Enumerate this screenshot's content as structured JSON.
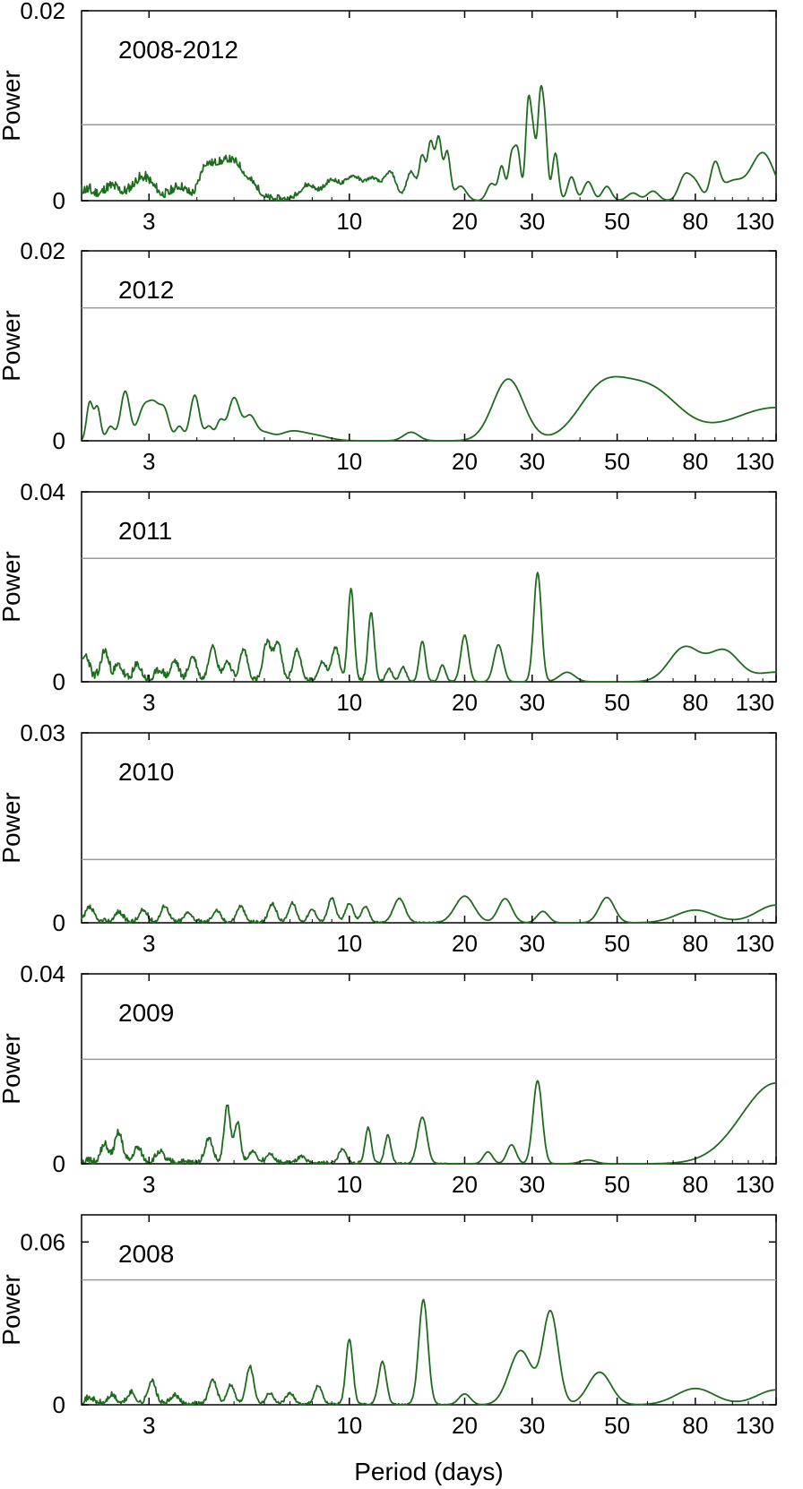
{
  "chart_data": {
    "type": "line",
    "xlabel": "Period (days)",
    "xscale": "log",
    "xlim": [
      2,
      130
    ],
    "xticks": [
      {
        "value": 3,
        "label": "3"
      },
      {
        "value": 10,
        "label": "10"
      },
      {
        "value": 20,
        "label": "20"
      },
      {
        "value": 30,
        "label": "30"
      },
      {
        "value": 50,
        "label": "50"
      },
      {
        "value": 80,
        "label": "80"
      },
      {
        "value": 130,
        "label": "130"
      }
    ],
    "line_color": "#1e6b1e",
    "threshold_color": "#9a9a9a",
    "panels": [
      {
        "label": "2008-2012",
        "ylabel": "Power",
        "ylim": [
          0,
          0.02
        ],
        "yticks": [
          {
            "value": 0,
            "label": "0"
          },
          {
            "value": 0.02,
            "label": "0.02"
          }
        ],
        "threshold": 0.008,
        "seed": 11,
        "noise": 0.0012,
        "peaks": [
          [
            2.05,
            0.0008,
            0.02
          ],
          [
            2.4,
            0.0012,
            0.02
          ],
          [
            2.8,
            0.0014,
            0.02
          ],
          [
            3.0,
            0.0014,
            0.02
          ],
          [
            3.6,
            0.0012,
            0.02
          ],
          [
            4.2,
            0.0032,
            0.015
          ],
          [
            4.5,
            0.0028,
            0.015
          ],
          [
            4.8,
            0.003,
            0.015
          ],
          [
            5.1,
            0.0026,
            0.015
          ],
          [
            5.5,
            0.0018,
            0.02
          ],
          [
            7.8,
            0.0015,
            0.02
          ],
          [
            9.0,
            0.002,
            0.02
          ],
          [
            10.2,
            0.0024,
            0.02
          ],
          [
            11.5,
            0.0022,
            0.02
          ],
          [
            12.8,
            0.0028,
            0.015
          ],
          [
            14.5,
            0.003,
            0.012
          ],
          [
            15.5,
            0.0045,
            0.008
          ],
          [
            16.3,
            0.006,
            0.008
          ],
          [
            17.1,
            0.0065,
            0.008
          ],
          [
            18.0,
            0.005,
            0.008
          ],
          [
            19.5,
            0.0015,
            0.015
          ],
          [
            23.5,
            0.0018,
            0.012
          ],
          [
            25.0,
            0.0035,
            0.008
          ],
          [
            26.5,
            0.0045,
            0.008
          ],
          [
            27.5,
            0.005,
            0.008
          ],
          [
            29.3,
            0.0098,
            0.007
          ],
          [
            30.2,
            0.006,
            0.007
          ],
          [
            31.5,
            0.01,
            0.007
          ],
          [
            32.4,
            0.007,
            0.007
          ],
          [
            34.5,
            0.005,
            0.008
          ],
          [
            38.0,
            0.0025,
            0.01
          ],
          [
            42.0,
            0.002,
            0.012
          ],
          [
            47.0,
            0.0015,
            0.012
          ],
          [
            55.0,
            0.0008,
            0.015
          ],
          [
            62.0,
            0.001,
            0.015
          ],
          [
            75.0,
            0.0025,
            0.015
          ],
          [
            80.0,
            0.0018,
            0.015
          ],
          [
            90.0,
            0.0035,
            0.012
          ],
          [
            100.0,
            0.002,
            0.03
          ],
          [
            120.0,
            0.005,
            0.03
          ]
        ]
      },
      {
        "label": "2012",
        "ylabel": "Power",
        "ylim": [
          0,
          0.02
        ],
        "yticks": [
          {
            "value": 0,
            "label": "0"
          },
          {
            "value": 0.02,
            "label": "0.02"
          }
        ],
        "threshold": 0.014,
        "seed": 0,
        "noise": 0,
        "peaks": [
          [
            2.1,
            0.004,
            0.008
          ],
          [
            2.2,
            0.0035,
            0.008
          ],
          [
            2.38,
            0.0015,
            0.01
          ],
          [
            2.6,
            0.0052,
            0.012
          ],
          [
            2.9,
            0.0032,
            0.015
          ],
          [
            3.1,
            0.0035,
            0.015
          ],
          [
            3.3,
            0.0028,
            0.012
          ],
          [
            3.6,
            0.0015,
            0.01
          ],
          [
            3.95,
            0.0048,
            0.012
          ],
          [
            4.3,
            0.0015,
            0.01
          ],
          [
            4.6,
            0.002,
            0.01
          ],
          [
            5.0,
            0.0045,
            0.015
          ],
          [
            5.5,
            0.0025,
            0.015
          ],
          [
            6.0,
            0.0008,
            0.02
          ],
          [
            7.0,
            0.0008,
            0.03
          ],
          [
            8.0,
            0.0006,
            0.04
          ],
          [
            14.5,
            0.0009,
            0.02
          ],
          [
            26.0,
            0.0065,
            0.04
          ],
          [
            45.0,
            0.0045,
            0.06
          ],
          [
            60.0,
            0.0055,
            0.08
          ],
          [
            130.0,
            0.0035,
            0.12
          ]
        ]
      },
      {
        "label": "2011",
        "ylabel": "Power",
        "ylim": [
          0,
          0.04
        ],
        "yticks": [
          {
            "value": 0,
            "label": "0"
          },
          {
            "value": 0.04,
            "label": "0.04"
          }
        ],
        "threshold": 0.026,
        "seed": 23,
        "noise": 0.002,
        "peaks": [
          [
            2.05,
            0.005,
            0.01
          ],
          [
            2.3,
            0.006,
            0.01
          ],
          [
            2.5,
            0.003,
            0.01
          ],
          [
            2.8,
            0.003,
            0.01
          ],
          [
            3.2,
            0.002,
            0.01
          ],
          [
            3.5,
            0.004,
            0.01
          ],
          [
            3.9,
            0.005,
            0.01
          ],
          [
            4.4,
            0.0075,
            0.01
          ],
          [
            4.8,
            0.004,
            0.01
          ],
          [
            5.3,
            0.0065,
            0.01
          ],
          [
            6.1,
            0.008,
            0.01
          ],
          [
            6.5,
            0.008,
            0.01
          ],
          [
            7.3,
            0.0065,
            0.01
          ],
          [
            8.5,
            0.004,
            0.01
          ],
          [
            9.2,
            0.007,
            0.01
          ],
          [
            10.1,
            0.0195,
            0.008
          ],
          [
            11.4,
            0.0145,
            0.008
          ],
          [
            12.7,
            0.0025,
            0.008
          ],
          [
            13.8,
            0.003,
            0.008
          ],
          [
            15.5,
            0.0085,
            0.008
          ],
          [
            17.5,
            0.0035,
            0.008
          ],
          [
            20.0,
            0.0098,
            0.01
          ],
          [
            24.5,
            0.0078,
            0.012
          ],
          [
            31.0,
            0.023,
            0.01
          ],
          [
            37.0,
            0.002,
            0.02
          ],
          [
            75.0,
            0.0072,
            0.04
          ],
          [
            95.0,
            0.0065,
            0.04
          ],
          [
            130.0,
            0.002,
            0.05
          ]
        ]
      },
      {
        "label": "2010",
        "ylabel": "Power",
        "ylim": [
          0,
          0.03
        ],
        "yticks": [
          {
            "value": 0,
            "label": "0"
          },
          {
            "value": 0.03,
            "label": "0.03"
          }
        ],
        "threshold": 0.01,
        "seed": 37,
        "noise": 0.0008,
        "peaks": [
          [
            2.1,
            0.0022,
            0.01
          ],
          [
            2.5,
            0.0015,
            0.01
          ],
          [
            2.9,
            0.0018,
            0.01
          ],
          [
            3.3,
            0.0025,
            0.01
          ],
          [
            3.8,
            0.0015,
            0.01
          ],
          [
            4.5,
            0.0018,
            0.01
          ],
          [
            5.2,
            0.0025,
            0.01
          ],
          [
            6.3,
            0.0028,
            0.01
          ],
          [
            7.1,
            0.003,
            0.01
          ],
          [
            8.0,
            0.002,
            0.01
          ],
          [
            9.0,
            0.0038,
            0.01
          ],
          [
            10.0,
            0.003,
            0.01
          ],
          [
            11.0,
            0.0025,
            0.01
          ],
          [
            13.5,
            0.0038,
            0.015
          ],
          [
            20.0,
            0.0042,
            0.025
          ],
          [
            25.5,
            0.0038,
            0.018
          ],
          [
            32.0,
            0.0018,
            0.015
          ],
          [
            47.0,
            0.004,
            0.02
          ],
          [
            80.0,
            0.002,
            0.05
          ],
          [
            130.0,
            0.0028,
            0.05
          ]
        ]
      },
      {
        "label": "2009",
        "ylabel": "Power",
        "ylim": [
          0,
          0.04
        ],
        "yticks": [
          {
            "value": 0,
            "label": "0"
          },
          {
            "value": 0.04,
            "label": "0.04"
          }
        ],
        "threshold": 0.022,
        "seed": 51,
        "noise": 0.0015,
        "peaks": [
          [
            2.3,
            0.0035,
            0.01
          ],
          [
            2.5,
            0.006,
            0.01
          ],
          [
            2.8,
            0.003,
            0.01
          ],
          [
            3.2,
            0.0022,
            0.01
          ],
          [
            4.3,
            0.005,
            0.01
          ],
          [
            4.8,
            0.012,
            0.008
          ],
          [
            5.1,
            0.0085,
            0.008
          ],
          [
            5.6,
            0.0025,
            0.01
          ],
          [
            6.2,
            0.002,
            0.01
          ],
          [
            7.5,
            0.0012,
            0.01
          ],
          [
            9.6,
            0.0028,
            0.01
          ],
          [
            11.2,
            0.0075,
            0.008
          ],
          [
            12.6,
            0.0058,
            0.008
          ],
          [
            15.5,
            0.0098,
            0.012
          ],
          [
            23.0,
            0.0025,
            0.012
          ],
          [
            26.5,
            0.004,
            0.012
          ],
          [
            31.0,
            0.0175,
            0.012
          ],
          [
            42.0,
            0.0008,
            0.02
          ],
          [
            130.0,
            0.017,
            0.09
          ]
        ]
      },
      {
        "label": "2008",
        "ylabel": "Power",
        "ylim": [
          0,
          0.07
        ],
        "yticks": [
          {
            "value": 0,
            "label": "0"
          },
          {
            "value": 0.06,
            "label": "0.06"
          }
        ],
        "threshold": 0.046,
        "seed": 71,
        "noise": 0.002,
        "peaks": [
          [
            2.1,
            0.002,
            0.01
          ],
          [
            2.4,
            0.003,
            0.01
          ],
          [
            2.7,
            0.004,
            0.01
          ],
          [
            3.05,
            0.0085,
            0.01
          ],
          [
            3.5,
            0.003,
            0.01
          ],
          [
            4.4,
            0.009,
            0.01
          ],
          [
            4.9,
            0.007,
            0.01
          ],
          [
            5.5,
            0.0138,
            0.01
          ],
          [
            6.2,
            0.004,
            0.01
          ],
          [
            7.0,
            0.004,
            0.01
          ],
          [
            8.3,
            0.0068,
            0.01
          ],
          [
            10.0,
            0.024,
            0.009
          ],
          [
            12.2,
            0.0158,
            0.01
          ],
          [
            15.6,
            0.0385,
            0.012
          ],
          [
            20.0,
            0.004,
            0.015
          ],
          [
            28.0,
            0.02,
            0.03
          ],
          [
            33.5,
            0.034,
            0.02
          ],
          [
            45.0,
            0.012,
            0.03
          ],
          [
            80.0,
            0.006,
            0.05
          ],
          [
            130.0,
            0.0055,
            0.05
          ]
        ]
      }
    ]
  }
}
